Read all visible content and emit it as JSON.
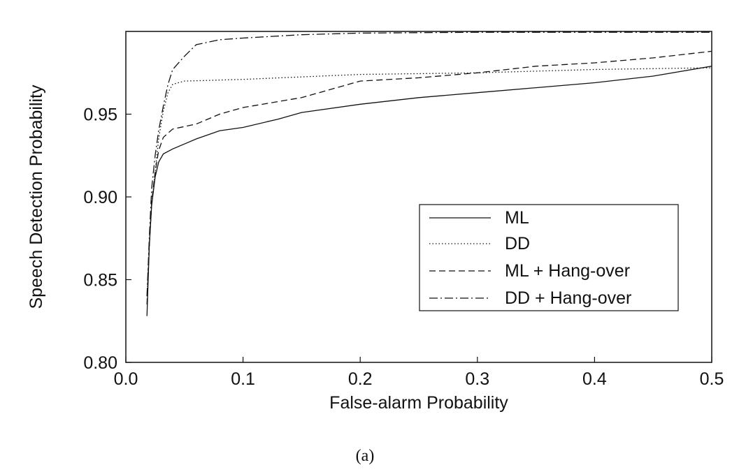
{
  "chart_data": {
    "type": "line",
    "title": "",
    "xlabel": "False-alarm Probability",
    "ylabel": "Speech Detection Probability",
    "caption": "(a)",
    "xlim": [
      0.0,
      0.5
    ],
    "ylim": [
      0.8,
      1.0
    ],
    "x_ticks": [
      "0.0",
      "0.1",
      "0.2",
      "0.3",
      "0.4",
      "0.5"
    ],
    "y_ticks": [
      "0.80",
      "0.85",
      "0.90",
      "0.95"
    ],
    "grid": false,
    "legend_position": "bottom-right",
    "series": [
      {
        "name": "ML",
        "style": "solid",
        "points": [
          [
            0.018,
            0.828
          ],
          [
            0.02,
            0.87
          ],
          [
            0.022,
            0.895
          ],
          [
            0.025,
            0.912
          ],
          [
            0.028,
            0.921
          ],
          [
            0.032,
            0.926
          ],
          [
            0.04,
            0.929
          ],
          [
            0.05,
            0.932
          ],
          [
            0.06,
            0.935
          ],
          [
            0.08,
            0.94
          ],
          [
            0.1,
            0.942
          ],
          [
            0.13,
            0.947
          ],
          [
            0.15,
            0.951
          ],
          [
            0.2,
            0.956
          ],
          [
            0.25,
            0.96
          ],
          [
            0.3,
            0.963
          ],
          [
            0.35,
            0.966
          ],
          [
            0.4,
            0.969
          ],
          [
            0.45,
            0.973
          ],
          [
            0.5,
            0.979
          ]
        ]
      },
      {
        "name": "DD",
        "style": "dotted",
        "points": [
          [
            0.018,
            0.84
          ],
          [
            0.02,
            0.87
          ],
          [
            0.022,
            0.895
          ],
          [
            0.025,
            0.915
          ],
          [
            0.028,
            0.935
          ],
          [
            0.032,
            0.952
          ],
          [
            0.036,
            0.963
          ],
          [
            0.04,
            0.968
          ],
          [
            0.05,
            0.97
          ],
          [
            0.1,
            0.971
          ],
          [
            0.2,
            0.974
          ],
          [
            0.3,
            0.975
          ],
          [
            0.4,
            0.977
          ],
          [
            0.5,
            0.978
          ]
        ]
      },
      {
        "name": "ML + Hang-over",
        "style": "dashed",
        "points": [
          [
            0.018,
            0.835
          ],
          [
            0.02,
            0.87
          ],
          [
            0.022,
            0.897
          ],
          [
            0.025,
            0.915
          ],
          [
            0.028,
            0.928
          ],
          [
            0.032,
            0.936
          ],
          [
            0.04,
            0.941
          ],
          [
            0.06,
            0.944
          ],
          [
            0.08,
            0.95
          ],
          [
            0.1,
            0.954
          ],
          [
            0.15,
            0.96
          ],
          [
            0.2,
            0.97
          ],
          [
            0.25,
            0.972
          ],
          [
            0.3,
            0.975
          ],
          [
            0.35,
            0.979
          ],
          [
            0.4,
            0.981
          ],
          [
            0.45,
            0.984
          ],
          [
            0.5,
            0.988
          ]
        ]
      },
      {
        "name": "DD + Hang-over",
        "style": "dashdot",
        "points": [
          [
            0.018,
            0.84
          ],
          [
            0.02,
            0.875
          ],
          [
            0.022,
            0.905
          ],
          [
            0.025,
            0.925
          ],
          [
            0.028,
            0.94
          ],
          [
            0.032,
            0.955
          ],
          [
            0.036,
            0.968
          ],
          [
            0.04,
            0.977
          ],
          [
            0.05,
            0.985
          ],
          [
            0.06,
            0.992
          ],
          [
            0.08,
            0.995
          ],
          [
            0.1,
            0.996
          ],
          [
            0.15,
            0.998
          ],
          [
            0.2,
            0.999
          ],
          [
            0.3,
            0.9995
          ],
          [
            0.5,
            0.9995
          ]
        ]
      }
    ]
  }
}
